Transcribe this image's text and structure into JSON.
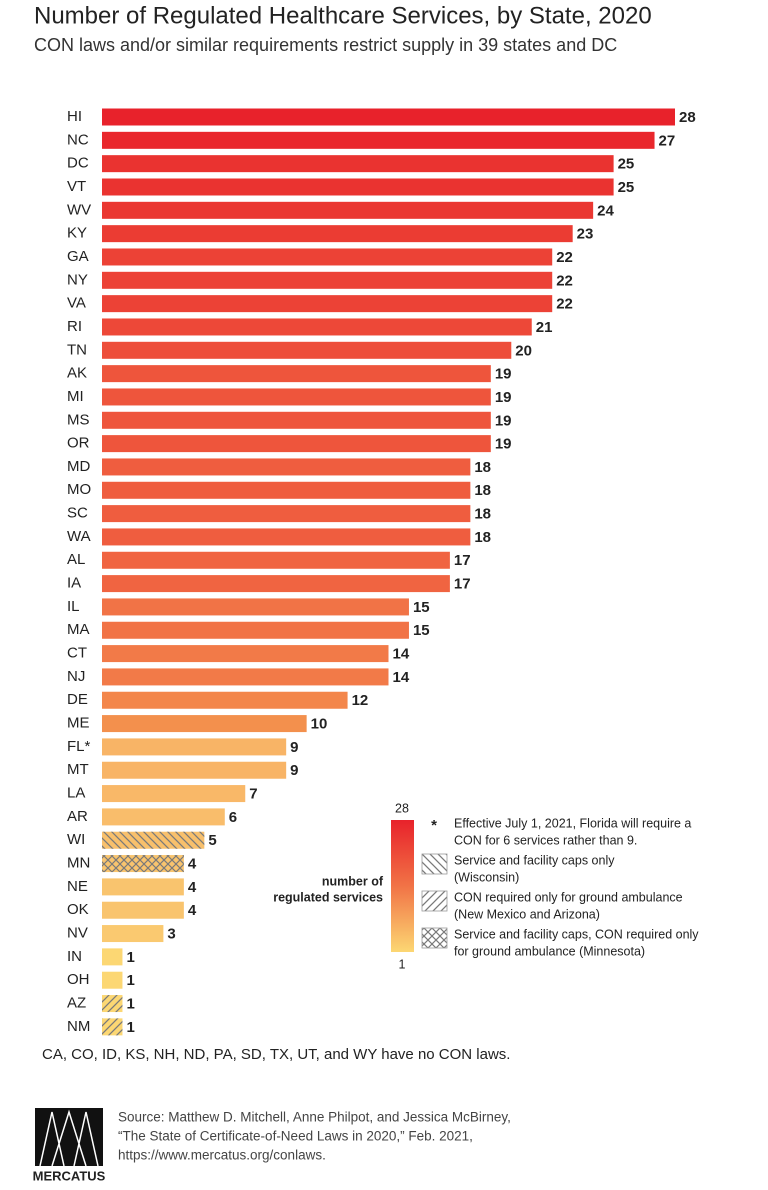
{
  "chart_data": {
    "type": "bar",
    "orientation": "horizontal",
    "title": "Number of Regulated Healthcare Services, by State, 2020",
    "subtitle": "CON laws and/or similar requirements restrict supply in 39 states and DC",
    "categories": [
      "HI",
      "NC",
      "DC",
      "VT",
      "WV",
      "KY",
      "GA",
      "NY",
      "VA",
      "RI",
      "TN",
      "AK",
      "MI",
      "MS",
      "OR",
      "MD",
      "MO",
      "SC",
      "WA",
      "AL",
      "IA",
      "IL",
      "MA",
      "CT",
      "NJ",
      "DE",
      "ME",
      "FL*",
      "MT",
      "LA",
      "AR",
      "WI",
      "MN",
      "NE",
      "OK",
      "NV",
      "IN",
      "OH",
      "AZ",
      "NM"
    ],
    "values": [
      28,
      27,
      25,
      25,
      24,
      23,
      22,
      22,
      22,
      21,
      20,
      19,
      19,
      19,
      19,
      18,
      18,
      18,
      18,
      17,
      17,
      15,
      15,
      14,
      14,
      12,
      10,
      9,
      9,
      7,
      6,
      5,
      4,
      4,
      4,
      3,
      1,
      1,
      1,
      1
    ],
    "colors": [
      "#e8222b",
      "#e9272c",
      "#ea3330",
      "#ea3330",
      "#ea3731",
      "#eb3c33",
      "#ec4236",
      "#ec4236",
      "#ec4236",
      "#ed4838",
      "#ed4e3a",
      "#ee553c",
      "#ee553c",
      "#ee553c",
      "#ee553c",
      "#ef5d3f",
      "#ef5d3f",
      "#ef5d3f",
      "#ef5d3f",
      "#f06441",
      "#f06441",
      "#f17346",
      "#f17346",
      "#f27a48",
      "#f27a48",
      "#f3864b",
      "#f3904d",
      "#f8b466",
      "#f8b466",
      "#f9b868",
      "#f9bd6b",
      "#f8c06c",
      "#f9c46e",
      "#f9c46e",
      "#f9c46e",
      "#fac970",
      "#fcd773",
      "#fcd773",
      "#fcd773",
      "#fcd773"
    ],
    "patterns": [
      null,
      null,
      null,
      null,
      null,
      null,
      null,
      null,
      null,
      null,
      null,
      null,
      null,
      null,
      null,
      null,
      null,
      null,
      null,
      null,
      null,
      null,
      null,
      null,
      null,
      null,
      null,
      null,
      null,
      null,
      null,
      "backslash",
      "cross",
      null,
      null,
      null,
      null,
      null,
      "slash",
      "slash"
    ],
    "colorbar": {
      "min": 1,
      "max": 28,
      "min_color": "#fcd773",
      "max_color": "#e8222b",
      "label_lines": [
        "number of",
        "regulated services"
      ]
    },
    "notes": [
      {
        "symbol": "*",
        "lines": [
          "Effective July 1, 2021, Florida will require a",
          "CON for 6 services rather than 9."
        ]
      },
      {
        "pattern": "backslash",
        "lines": [
          "Service and facility caps only",
          "(Wisconsin)"
        ]
      },
      {
        "pattern": "slash",
        "lines": [
          "CON required only for ground ambulance",
          "(New Mexico and Arizona)"
        ]
      },
      {
        "pattern": "cross",
        "lines": [
          "Service and facility caps, CON required only",
          "for ground ambulance (Minnesota)"
        ]
      }
    ],
    "footnote": "CA, CO, ID, KS, NH, ND, PA, SD, TX, UT, and WY have no CON laws.",
    "source_lines": [
      "Source: Matthew D. Mitchell, Anne Philpot, and Jessica McBirney,",
      "“The State of Certificate-of-Need Laws in 2020,” Feb. 2021,",
      "https://www.mercatus.org/conlaws."
    ],
    "logo_text": "MERCATUS"
  }
}
